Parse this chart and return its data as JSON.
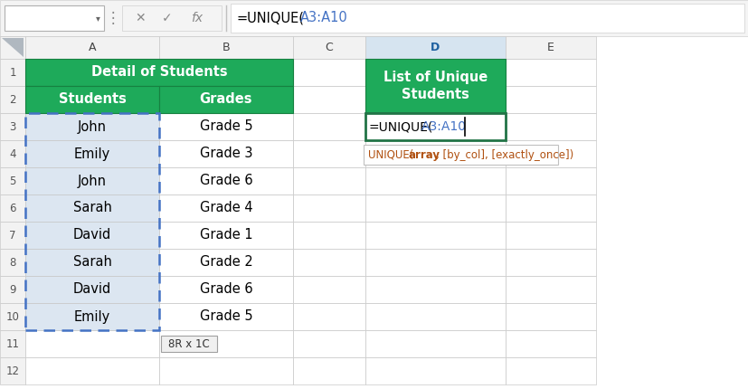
{
  "formula_bar_text_black": "=UNIQUE(",
  "formula_bar_text_blue": "A3:A10",
  "col_headers": [
    "A",
    "B",
    "C",
    "D",
    "E"
  ],
  "header1_text": "Detail of Students",
  "header2_A": "Students",
  "header2_B": "Grades",
  "header_D_line1": "List of Unique",
  "header_D_line2": "Students",
  "students": [
    "John",
    "Emily",
    "John",
    "Sarah",
    "David",
    "Sarah",
    "David",
    "Emily"
  ],
  "grades": [
    "Grade 5",
    "Grade 3",
    "Grade 6",
    "Grade 4",
    "Grade 1",
    "Grade 2",
    "Grade 6",
    "Grade 5"
  ],
  "size_label": "8R x 1C",
  "green_header": "#1EAA5A",
  "light_blue_bg": "#DCE6F1",
  "grid_color": "#C8C8C8",
  "col_header_bg": "#F2F2F2",
  "selected_col_bg": "#D6E4F0",
  "dashed_border_color": "#4472C4",
  "formula_blue": "#4472C4",
  "tooltip_text_color": "#C05010",
  "tooltip_bold_color": "#C05010",
  "active_cell_border": "#217346"
}
